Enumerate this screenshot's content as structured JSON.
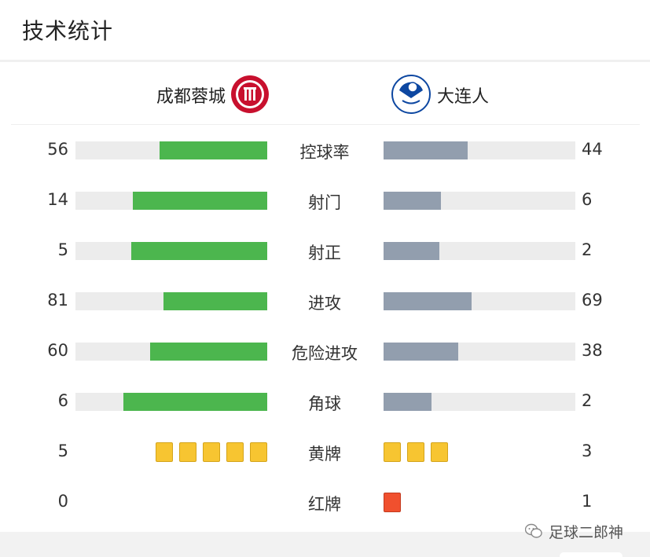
{
  "page_title": "技术统计",
  "teams": {
    "home": {
      "name": "成都蓉城",
      "color": "#c8102e"
    },
    "away": {
      "name": "大连人",
      "color": "#0d47a1"
    }
  },
  "stats": [
    {
      "label": "控球率",
      "home": "56",
      "away": "44",
      "home_fraction": 0.56,
      "away_fraction": 0.44
    },
    {
      "label": "射门",
      "home": "14",
      "away": "6",
      "home_fraction": 0.7,
      "away_fraction": 0.3
    },
    {
      "label": "射正",
      "home": "5",
      "away": "2",
      "home_fraction": 0.71,
      "away_fraction": 0.29
    },
    {
      "label": "进攻",
      "home": "81",
      "away": "69",
      "home_fraction": 0.54,
      "away_fraction": 0.46
    },
    {
      "label": "危险进攻",
      "home": "60",
      "away": "38",
      "home_fraction": 0.61,
      "away_fraction": 0.39
    },
    {
      "label": "角球",
      "home": "6",
      "away": "2",
      "home_fraction": 0.75,
      "away_fraction": 0.25
    }
  ],
  "cards": [
    {
      "label": "黄牌",
      "home": "5",
      "away": "3",
      "type": "yellow",
      "home_count": 5,
      "away_count": 3
    },
    {
      "label": "红牌",
      "home": "0",
      "away": "1",
      "type": "red",
      "home_count": 0,
      "away_count": 1
    }
  ],
  "colors": {
    "home_bar": "#4cb64e",
    "away_bar": "#929eae",
    "track": "#ececec"
  },
  "watermark": {
    "icon": "wechat-icon",
    "text": "足球二郎神"
  }
}
